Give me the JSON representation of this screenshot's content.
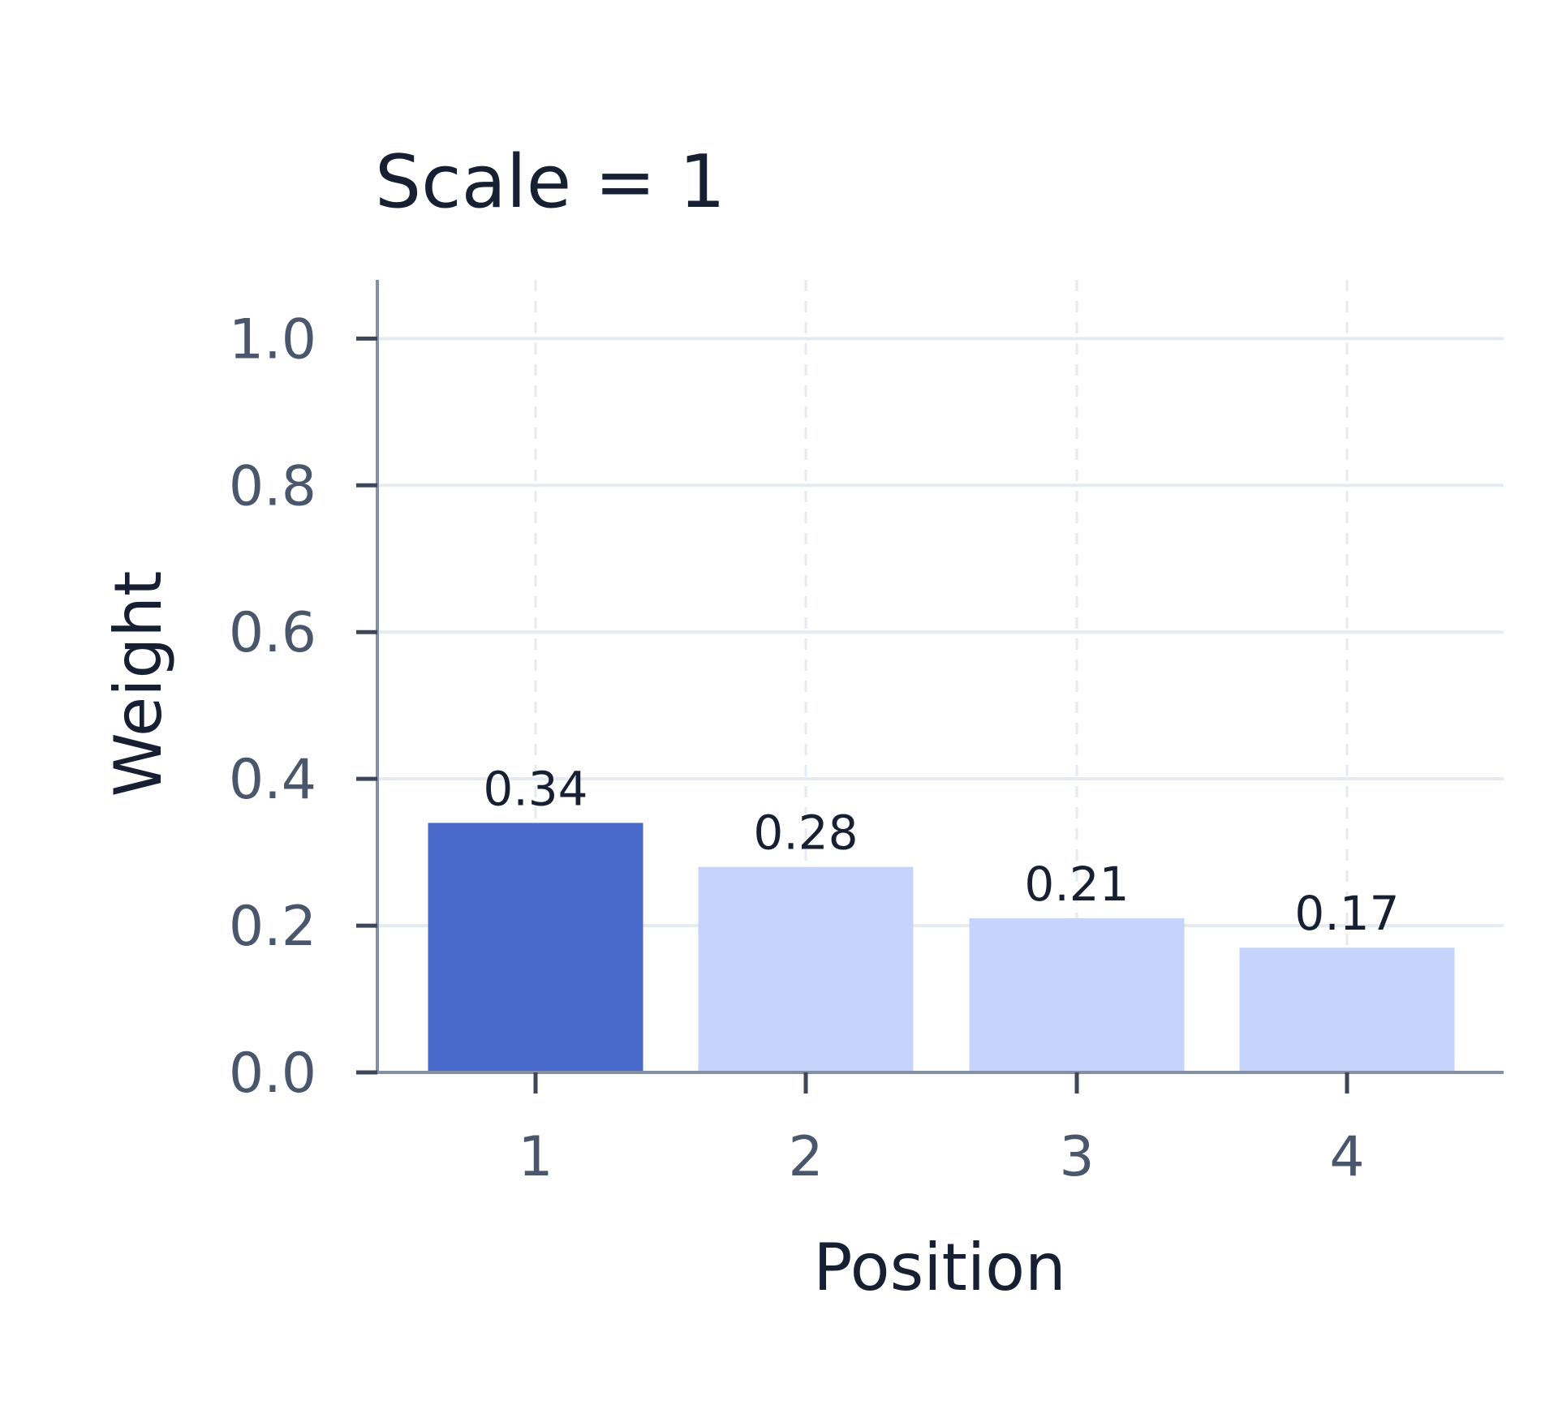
{
  "chart_data": {
    "type": "bar",
    "title": "Scale = 1",
    "xlabel": "Position",
    "ylabel": "Weight",
    "categories": [
      "1",
      "2",
      "3",
      "4"
    ],
    "values": [
      0.34,
      0.28,
      0.21,
      0.17
    ],
    "value_labels": [
      "0.34",
      "0.28",
      "0.21",
      "0.17"
    ],
    "highlighted_index": 0,
    "ylim": [
      0,
      1.08
    ],
    "yticks": [
      0.0,
      0.2,
      0.4,
      0.6,
      0.8,
      1.0
    ],
    "ytick_labels": [
      "0.0",
      "0.2",
      "0.4",
      "0.6",
      "0.8",
      "1.0"
    ],
    "grid": true,
    "colors": {
      "highlight": "#4a6acb",
      "bar": "#c6d4fb",
      "grid": "#e6eaf1",
      "axis": "#8390a6"
    }
  }
}
